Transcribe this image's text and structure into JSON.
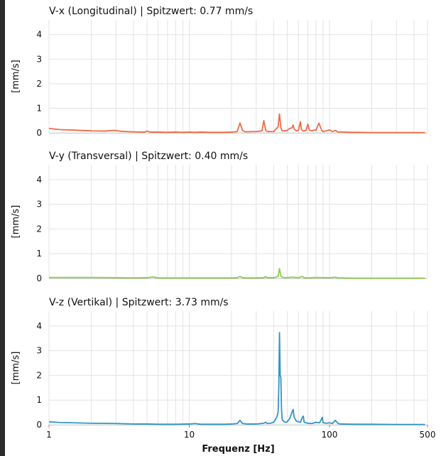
{
  "chart_data": [
    {
      "type": "line",
      "title": "V-x (Longitudinal) | Spitzwert: 0.77 mm/s",
      "ylabel": "[mm/s]",
      "xscale": "log",
      "xlim": [
        1,
        500
      ],
      "ylim": [
        0,
        4.6
      ],
      "yticks": [
        "0",
        "1",
        "2",
        "3",
        "4"
      ],
      "grid": true,
      "color": "#f26a47",
      "series": [
        {
          "x": [
            1,
            1.2,
            1.5,
            2,
            2.5,
            2.9,
            3.3,
            4,
            4.8,
            5,
            5.3,
            6,
            7,
            8,
            9,
            10,
            11,
            12,
            14,
            16,
            18,
            20,
            22,
            23,
            24,
            25,
            28,
            30,
            33,
            34,
            35,
            36,
            40,
            43,
            44,
            45,
            46,
            48,
            50,
            52,
            54,
            55,
            56,
            58,
            60,
            62,
            63,
            65,
            68,
            70,
            72,
            75,
            78,
            80,
            84,
            88,
            89,
            90,
            95,
            100,
            105,
            110,
            115,
            120,
            140,
            160,
            200,
            250,
            300,
            400,
            480
          ],
          "y": [
            0.18,
            0.13,
            0.11,
            0.08,
            0.07,
            0.1,
            0.06,
            0.04,
            0.03,
            0.07,
            0.03,
            0.03,
            0.02,
            0.03,
            0.02,
            0.03,
            0.02,
            0.03,
            0.02,
            0.02,
            0.02,
            0.03,
            0.05,
            0.4,
            0.1,
            0.04,
            0.05,
            0.05,
            0.08,
            0.5,
            0.12,
            0.05,
            0.05,
            0.25,
            0.77,
            0.2,
            0.08,
            0.08,
            0.1,
            0.18,
            0.2,
            0.32,
            0.15,
            0.08,
            0.1,
            0.45,
            0.15,
            0.07,
            0.1,
            0.35,
            0.1,
            0.08,
            0.12,
            0.1,
            0.4,
            0.1,
            0.08,
            0.05,
            0.08,
            0.12,
            0.05,
            0.1,
            0.03,
            0.04,
            0.02,
            0.02,
            0.01,
            0.01,
            0.01,
            0.01,
            0.01
          ]
        }
      ]
    },
    {
      "type": "line",
      "title": "V-y (Transversal) | Spitzwert: 0.40 mm/s",
      "ylabel": "[mm/s]",
      "xscale": "log",
      "xlim": [
        1,
        500
      ],
      "ylim": [
        0,
        4.6
      ],
      "yticks": [
        "0",
        "1",
        "2",
        "3",
        "4"
      ],
      "grid": true,
      "color": "#8ccc4a",
      "series": [
        {
          "x": [
            1,
            1.5,
            2,
            3,
            4,
            5,
            5.5,
            6,
            8,
            10,
            12,
            15,
            18,
            20,
            22,
            23,
            24,
            26,
            30,
            34,
            35,
            36,
            40,
            43,
            44,
            45,
            46,
            48,
            55,
            60,
            64,
            66,
            70,
            80,
            90,
            100,
            110,
            115,
            120,
            150,
            200,
            300,
            480
          ],
          "y": [
            0.04,
            0.04,
            0.04,
            0.03,
            0.02,
            0.03,
            0.06,
            0.02,
            0.02,
            0.02,
            0.02,
            0.02,
            0.02,
            0.02,
            0.03,
            0.08,
            0.03,
            0.02,
            0.02,
            0.03,
            0.07,
            0.03,
            0.03,
            0.08,
            0.4,
            0.1,
            0.05,
            0.03,
            0.05,
            0.03,
            0.08,
            0.03,
            0.02,
            0.04,
            0.03,
            0.03,
            0.05,
            0.02,
            0.02,
            0.01,
            0.01,
            0.01,
            0.01
          ]
        }
      ]
    },
    {
      "type": "line",
      "title": "V-z (Vertikal) | Spitzwert: 3.73 mm/s",
      "ylabel": "[mm/s]",
      "xlabel": "Frequenz [Hz]",
      "xscale": "log",
      "xlim": [
        1,
        500
      ],
      "ylim": [
        0,
        4.6
      ],
      "yticks": [
        "0",
        "1",
        "2",
        "3",
        "4"
      ],
      "xticks": [
        "1",
        "10",
        "100",
        "500"
      ],
      "grid": true,
      "color": "#2f95c8",
      "series": [
        {
          "x": [
            1,
            1.2,
            1.5,
            2,
            3,
            4,
            5,
            6,
            8,
            10,
            11,
            12,
            15,
            18,
            20,
            22,
            23,
            24,
            26,
            30,
            34,
            35,
            36,
            38,
            40,
            42,
            43,
            43.5,
            44,
            44.5,
            45,
            45.5,
            46,
            48,
            50,
            52,
            54,
            55,
            56,
            58,
            60,
            62,
            64,
            65,
            66,
            70,
            75,
            80,
            85,
            88,
            89,
            90,
            95,
            100,
            105,
            110,
            115,
            120,
            150,
            200,
            300,
            480
          ],
          "y": [
            0.12,
            0.09,
            0.08,
            0.06,
            0.05,
            0.03,
            0.03,
            0.02,
            0.02,
            0.03,
            0.05,
            0.02,
            0.02,
            0.02,
            0.03,
            0.05,
            0.18,
            0.05,
            0.03,
            0.03,
            0.06,
            0.1,
            0.05,
            0.06,
            0.1,
            0.3,
            0.5,
            1.5,
            3.73,
            2.0,
            1.9,
            0.6,
            0.2,
            0.1,
            0.12,
            0.25,
            0.5,
            0.62,
            0.3,
            0.15,
            0.12,
            0.1,
            0.3,
            0.35,
            0.1,
            0.06,
            0.05,
            0.1,
            0.08,
            0.25,
            0.3,
            0.08,
            0.06,
            0.08,
            0.05,
            0.18,
            0.05,
            0.03,
            0.02,
            0.02,
            0.01,
            0.01
          ]
        }
      ]
    }
  ]
}
